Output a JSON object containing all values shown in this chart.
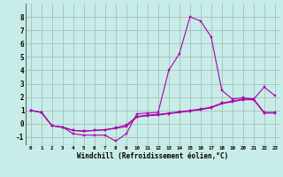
{
  "xlabel": "Windchill (Refroidissement éolien,°C)",
  "background_color": "#c8ece8",
  "grid_color": "#a0b8b4",
  "line_color": "#aa00aa",
  "xlim": [
    -0.5,
    23.5
  ],
  "ylim": [
    -1.6,
    9.0
  ],
  "yticks": [
    -1,
    0,
    1,
    2,
    3,
    4,
    5,
    6,
    7,
    8
  ],
  "xticks": [
    0,
    1,
    2,
    3,
    4,
    5,
    6,
    7,
    8,
    9,
    10,
    11,
    12,
    13,
    14,
    15,
    16,
    17,
    18,
    19,
    20,
    21,
    22,
    23
  ],
  "line1_x": [
    0,
    1,
    2,
    3,
    4,
    5,
    6,
    7,
    8,
    9,
    10,
    11,
    12,
    13,
    14,
    15,
    16,
    17,
    18,
    19,
    20,
    21,
    22,
    23
  ],
  "line1_y": [
    1.0,
    0.85,
    -0.15,
    -0.25,
    -0.75,
    -0.85,
    -0.85,
    -0.85,
    -1.3,
    -0.75,
    0.75,
    0.8,
    0.85,
    4.0,
    5.25,
    8.0,
    7.7,
    6.5,
    2.5,
    1.85,
    1.95,
    1.85,
    2.75,
    2.1
  ],
  "line2_x": [
    0,
    1,
    2,
    3,
    4,
    5,
    6,
    7,
    8,
    9,
    10,
    11,
    12,
    13,
    14,
    15,
    16,
    17,
    18,
    19,
    20,
    21,
    22,
    23
  ],
  "line2_y": [
    1.0,
    0.85,
    -0.15,
    -0.25,
    -0.5,
    -0.55,
    -0.5,
    -0.45,
    -0.35,
    -0.2,
    0.5,
    0.6,
    0.65,
    0.75,
    0.85,
    0.95,
    1.05,
    1.2,
    1.5,
    1.65,
    1.8,
    1.8,
    0.8,
    0.8
  ],
  "line3_x": [
    0,
    1,
    2,
    3,
    4,
    5,
    6,
    7,
    8,
    9,
    10,
    11,
    12,
    13,
    14,
    15,
    16,
    17,
    18,
    19,
    20,
    21,
    22,
    23
  ],
  "line3_y": [
    1.0,
    0.85,
    -0.15,
    -0.25,
    -0.5,
    -0.55,
    -0.5,
    -0.45,
    -0.3,
    -0.1,
    0.55,
    0.65,
    0.7,
    0.8,
    0.9,
    1.0,
    1.1,
    1.25,
    1.55,
    1.7,
    1.85,
    1.85,
    0.85,
    0.85
  ]
}
